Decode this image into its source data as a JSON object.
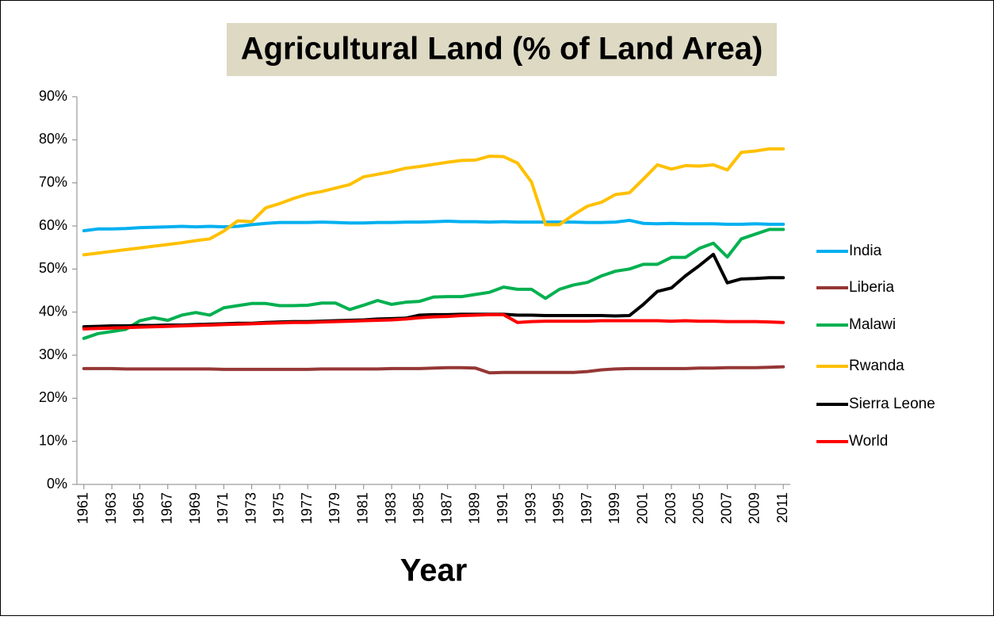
{
  "chart_data": {
    "type": "line",
    "title": "Agricultural Land (% of Land Area)",
    "x_label": "Year",
    "x": [
      1961,
      1962,
      1963,
      1964,
      1965,
      1966,
      1967,
      1968,
      1969,
      1970,
      1971,
      1972,
      1973,
      1974,
      1975,
      1976,
      1977,
      1978,
      1979,
      1980,
      1981,
      1982,
      1983,
      1984,
      1985,
      1986,
      1987,
      1988,
      1989,
      1990,
      1991,
      1992,
      1993,
      1994,
      1995,
      1996,
      1997,
      1998,
      1999,
      2000,
      2001,
      2002,
      2003,
      2004,
      2005,
      2006,
      2007,
      2008,
      2009,
      2010,
      2011
    ],
    "xlim": [
      1960.5,
      2011.5
    ],
    "xticks": [
      1961,
      1963,
      1965,
      1967,
      1969,
      1971,
      1973,
      1975,
      1977,
      1979,
      1981,
      1983,
      1985,
      1987,
      1989,
      1991,
      1993,
      1995,
      1997,
      1999,
      2001,
      2003,
      2005,
      2007,
      2009,
      2011
    ],
    "ylim": [
      0,
      90
    ],
    "yticks": [
      {
        "value": 0,
        "label": "0%"
      },
      {
        "value": 10,
        "label": "10%"
      },
      {
        "value": 20,
        "label": "20%"
      },
      {
        "value": 30,
        "label": "30%"
      },
      {
        "value": 40,
        "label": "40%"
      },
      {
        "value": 50,
        "label": "50%"
      },
      {
        "value": 60,
        "label": "60%"
      },
      {
        "value": 70,
        "label": "70%"
      },
      {
        "value": 80,
        "label": "80%"
      },
      {
        "value": 90,
        "label": "90%"
      }
    ],
    "grid": false,
    "legend": "right",
    "series": [
      {
        "name": "India",
        "color": "#00b0f0",
        "values": [
          58.9,
          59.3,
          59.3,
          59.4,
          59.6,
          59.7,
          59.8,
          59.9,
          59.8,
          59.9,
          59.8,
          59.9,
          60.3,
          60.6,
          60.8,
          60.8,
          60.8,
          60.9,
          60.8,
          60.7,
          60.7,
          60.8,
          60.8,
          60.9,
          60.9,
          61.0,
          61.1,
          61.0,
          61.0,
          60.9,
          61.0,
          60.9,
          60.9,
          60.9,
          60.9,
          60.9,
          60.8,
          60.8,
          60.9,
          61.3,
          60.6,
          60.5,
          60.6,
          60.5,
          60.5,
          60.5,
          60.4,
          60.4,
          60.5,
          60.4,
          60.4
        ]
      },
      {
        "name": "Liberia",
        "color": "#953735",
        "values": [
          26.9,
          26.9,
          26.9,
          26.8,
          26.8,
          26.8,
          26.8,
          26.8,
          26.8,
          26.8,
          26.7,
          26.7,
          26.7,
          26.7,
          26.7,
          26.7,
          26.7,
          26.8,
          26.8,
          26.8,
          26.8,
          26.8,
          26.9,
          26.9,
          26.9,
          27.0,
          27.1,
          27.1,
          27.0,
          25.9,
          26.0,
          26.0,
          26.0,
          26.0,
          26.0,
          26.0,
          26.2,
          26.6,
          26.8,
          26.9,
          26.9,
          26.9,
          26.9,
          26.9,
          27.0,
          27.0,
          27.1,
          27.1,
          27.1,
          27.2,
          27.3
        ]
      },
      {
        "name": "Malawi",
        "color": "#00b050",
        "values": [
          33.9,
          35.0,
          35.5,
          36.0,
          38.0,
          38.7,
          38.1,
          39.3,
          39.9,
          39.3,
          41.0,
          41.5,
          42.0,
          42.0,
          41.5,
          41.5,
          41.6,
          42.1,
          42.1,
          40.6,
          41.6,
          42.7,
          41.8,
          42.3,
          42.5,
          43.5,
          43.6,
          43.6,
          44.1,
          44.6,
          45.8,
          45.3,
          45.3,
          43.2,
          45.3,
          46.3,
          46.9,
          48.4,
          49.5,
          50.0,
          51.1,
          51.1,
          52.7,
          52.7,
          54.8,
          56.0,
          52.8,
          57.0,
          58.1,
          59.2,
          59.2
        ]
      },
      {
        "name": "Rwanda",
        "color": "#ffc000",
        "values": [
          53.3,
          53.7,
          54.1,
          54.5,
          54.9,
          55.3,
          55.7,
          56.1,
          56.6,
          57.0,
          58.8,
          61.2,
          61.0,
          64.2,
          65.2,
          66.4,
          67.4,
          68.0,
          68.8,
          69.6,
          71.4,
          72.0,
          72.6,
          73.4,
          73.8,
          74.3,
          74.8,
          75.2,
          75.3,
          76.2,
          76.1,
          74.6,
          70.2,
          60.3,
          60.3,
          62.6,
          64.6,
          65.5,
          67.3,
          67.7,
          70.9,
          74.2,
          73.2,
          74.0,
          73.9,
          74.2,
          73.0,
          77.1,
          77.4,
          77.9,
          77.9
        ]
      },
      {
        "name": "Sierra Leone",
        "color": "#000000",
        "values": [
          36.6,
          36.7,
          36.8,
          36.8,
          36.9,
          36.9,
          37.0,
          37.0,
          37.1,
          37.2,
          37.3,
          37.4,
          37.4,
          37.6,
          37.7,
          37.8,
          37.8,
          37.9,
          38.0,
          38.1,
          38.2,
          38.4,
          38.5,
          38.6,
          39.3,
          39.4,
          39.4,
          39.5,
          39.5,
          39.5,
          39.5,
          39.3,
          39.3,
          39.2,
          39.2,
          39.2,
          39.2,
          39.2,
          39.1,
          39.2,
          41.8,
          44.8,
          45.6,
          48.4,
          50.8,
          53.4,
          46.8,
          47.7,
          47.8,
          48.0,
          48.0
        ]
      },
      {
        "name": "World",
        "color": "#ff0000",
        "values": [
          36.1,
          36.2,
          36.3,
          36.4,
          36.5,
          36.6,
          36.7,
          36.8,
          36.9,
          37.0,
          37.1,
          37.2,
          37.3,
          37.4,
          37.5,
          37.6,
          37.6,
          37.7,
          37.8,
          37.9,
          38.0,
          38.1,
          38.2,
          38.4,
          38.7,
          38.9,
          39.0,
          39.2,
          39.3,
          39.4,
          39.4,
          37.6,
          37.8,
          37.9,
          37.9,
          37.9,
          37.9,
          38.0,
          38.0,
          38.0,
          38.0,
          38.0,
          37.9,
          38.0,
          37.9,
          37.9,
          37.8,
          37.8,
          37.8,
          37.7,
          37.6
        ]
      }
    ]
  }
}
